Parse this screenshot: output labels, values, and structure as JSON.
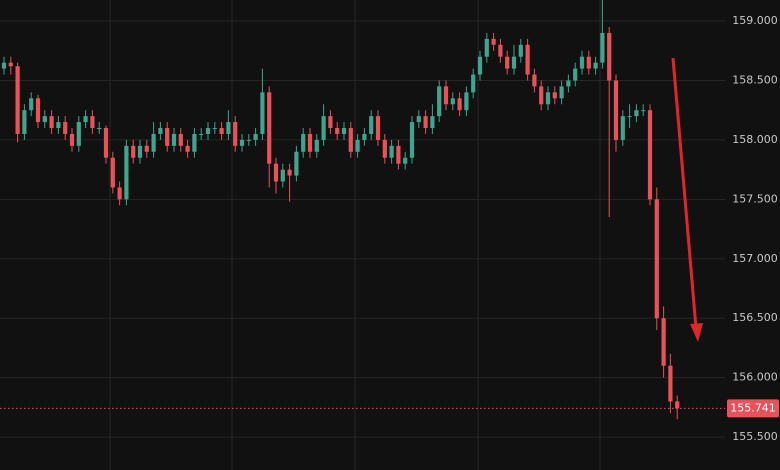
{
  "chart_data": {
    "type": "candlestick",
    "up_color": "#3fa58f",
    "down_color": "#e8525a",
    "grid": true,
    "last_price": 155.741,
    "last_price_color": "#e8525a",
    "ylim": [
      155.223,
      159.177
    ],
    "yticks": [
      {
        "value": 155.5,
        "label": "155.500"
      },
      {
        "value": 156,
        "label": "156.000"
      },
      {
        "value": 156.5,
        "label": "156.500"
      },
      {
        "value": 157,
        "label": "157.000"
      },
      {
        "value": 157.5,
        "label": "157.500"
      },
      {
        "value": 158,
        "label": "158.000"
      },
      {
        "value": 158.5,
        "label": "158.500"
      },
      {
        "value": 159,
        "label": "159.000"
      }
    ],
    "open": [
      158.6,
      158.65,
      158.62,
      158.05,
      158.25,
      158.35,
      158.15,
      158.2,
      158.1,
      158.15,
      158.05,
      157.95,
      158.15,
      158.2,
      158.1,
      158.1,
      157.85,
      157.6,
      157.5,
      157.95,
      157.85,
      157.95,
      157.9,
      158.05,
      158.1,
      157.95,
      158.05,
      157.95,
      157.9,
      158.05,
      158.05,
      158.1,
      158.1,
      158.05,
      158.15,
      157.95,
      158.0,
      158.0,
      158.05,
      158.4,
      157.8,
      157.65,
      157.75,
      157.7,
      157.9,
      158.05,
      157.9,
      158.0,
      158.2,
      158.1,
      158.05,
      158.1,
      157.9,
      158.0,
      158.05,
      158.2,
      158.0,
      157.85,
      157.95,
      157.8,
      157.85,
      158.15,
      158.2,
      158.1,
      158.2,
      158.45,
      158.3,
      158.35,
      158.25,
      158.4,
      158.55,
      158.7,
      158.85,
      158.8,
      158.7,
      158.6,
      158.7,
      158.8,
      158.55,
      158.45,
      158.3,
      158.4,
      158.35,
      158.45,
      158.5,
      158.6,
      158.7,
      158.6,
      158.65,
      158.9,
      158.5,
      158.0,
      158.2,
      158.2,
      158.25,
      158.25,
      157.5,
      156.5,
      156.1,
      155.8
    ],
    "high": [
      158.7,
      158.7,
      158.65,
      158.3,
      158.4,
      158.38,
      158.25,
      158.25,
      158.2,
      158.2,
      158.1,
      158.2,
      158.25,
      158.25,
      158.15,
      158.12,
      157.9,
      157.65,
      158.0,
      158.0,
      158.0,
      158.0,
      158.15,
      158.15,
      158.15,
      158.1,
      158.1,
      158.0,
      158.1,
      158.1,
      158.15,
      158.15,
      158.15,
      158.25,
      158.2,
      158.05,
      158.05,
      158.1,
      158.6,
      158.45,
      157.85,
      157.8,
      157.8,
      157.95,
      158.1,
      158.1,
      158.05,
      158.3,
      158.25,
      158.15,
      158.15,
      158.15,
      158.05,
      158.1,
      158.25,
      158.25,
      158.05,
      158.0,
      158.0,
      157.9,
      158.2,
      158.25,
      158.25,
      158.3,
      158.5,
      158.5,
      158.4,
      158.4,
      158.45,
      158.6,
      158.75,
      158.9,
      158.9,
      158.85,
      158.75,
      158.8,
      158.85,
      158.85,
      158.6,
      158.5,
      158.45,
      158.45,
      158.5,
      158.55,
      158.65,
      158.75,
      158.75,
      158.7,
      159.2,
      158.95,
      158.55,
      158.25,
      158.3,
      158.3,
      158.3,
      158.3,
      157.6,
      156.6,
      156.2,
      155.85
    ],
    "low": [
      158.55,
      158.55,
      157.98,
      158.0,
      158.2,
      158.1,
      158.1,
      158.05,
      158.05,
      158.0,
      157.9,
      157.9,
      158.1,
      158.05,
      158.05,
      157.8,
      157.55,
      157.45,
      157.45,
      157.8,
      157.8,
      157.85,
      157.85,
      158.0,
      157.9,
      157.9,
      157.9,
      157.85,
      157.85,
      158.0,
      158.0,
      158.05,
      158.0,
      158.0,
      157.9,
      157.9,
      157.95,
      157.95,
      158.0,
      157.6,
      157.55,
      157.6,
      157.48,
      157.65,
      157.85,
      157.85,
      157.85,
      157.95,
      158.05,
      158.0,
      158.0,
      157.85,
      157.85,
      157.95,
      158.0,
      157.95,
      157.8,
      157.8,
      157.75,
      157.75,
      157.8,
      158.1,
      158.05,
      158.05,
      158.15,
      158.25,
      158.25,
      158.2,
      158.2,
      158.35,
      158.5,
      158.65,
      158.75,
      158.65,
      158.55,
      158.55,
      158.65,
      158.5,
      158.4,
      158.25,
      158.25,
      158.3,
      158.3,
      158.4,
      158.45,
      158.55,
      158.55,
      158.55,
      158.6,
      157.35,
      157.9,
      157.95,
      158.1,
      158.15,
      158.2,
      157.45,
      156.4,
      156.0,
      155.7,
      155.65
    ],
    "close": [
      158.65,
      158.62,
      158.05,
      158.25,
      158.35,
      158.15,
      158.2,
      158.1,
      158.15,
      158.05,
      157.95,
      158.15,
      158.2,
      158.1,
      158.1,
      157.85,
      157.6,
      157.5,
      157.95,
      157.85,
      157.95,
      157.9,
      158.05,
      158.1,
      157.95,
      158.05,
      157.95,
      157.9,
      158.05,
      158.05,
      158.1,
      158.1,
      158.05,
      158.15,
      157.95,
      158.0,
      158.0,
      158.05,
      158.4,
      157.8,
      157.65,
      157.75,
      157.7,
      157.9,
      158.05,
      157.9,
      158.0,
      158.2,
      158.1,
      158.05,
      158.1,
      157.9,
      158.0,
      158.05,
      158.2,
      158.0,
      157.85,
      157.95,
      157.8,
      157.85,
      158.15,
      158.2,
      158.1,
      158.2,
      158.45,
      158.3,
      158.35,
      158.25,
      158.4,
      158.55,
      158.7,
      158.85,
      158.8,
      158.7,
      158.6,
      158.7,
      158.8,
      158.55,
      158.45,
      158.3,
      158.4,
      158.35,
      158.45,
      158.5,
      158.6,
      158.7,
      158.6,
      158.65,
      158.9,
      158.5,
      158.0,
      158.2,
      158.2,
      158.25,
      158.25,
      157.5,
      156.5,
      156.1,
      155.8,
      155.741
    ]
  }
}
